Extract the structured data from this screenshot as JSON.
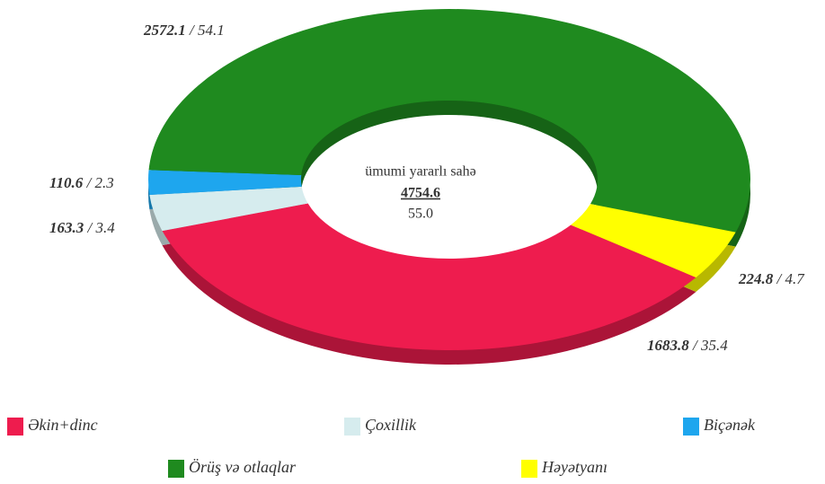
{
  "chart_data": {
    "type": "donut",
    "categories": [
      "Əkin+dinc",
      "Çoxillik",
      "Biçənək",
      "Örüş və otlaqlar",
      "Həyətyanı"
    ],
    "values": [
      1683.8,
      163.3,
      110.6,
      2572.1,
      224.8
    ],
    "percents": [
      35.4,
      3.4,
      2.3,
      54.1,
      4.7
    ],
    "colors": [
      "#ee1c4e",
      "#d6ecee",
      "#1ea6ee",
      "#1f8a1f",
      "#ffff00"
    ],
    "center_label": "ümumi yararlı sahə",
    "total": 4754.6,
    "total_percent": {
      "value": 55,
      "label": "55.0"
    }
  }
}
